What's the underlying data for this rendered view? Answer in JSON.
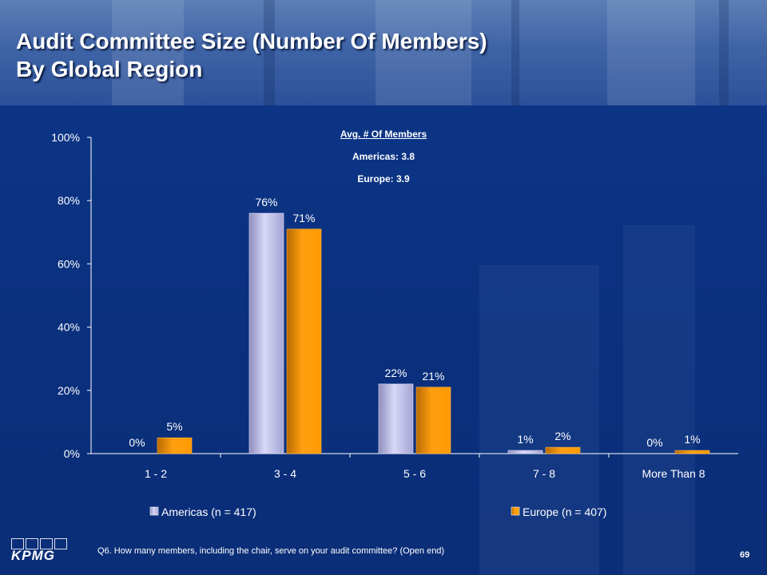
{
  "slide": {
    "title_line1": "Audit Committee Size (Number Of Members)",
    "title_line2": "By Global Region",
    "footnote": "Q6. How many members, including the chair, serve on your audit committee? (Open end)",
    "page_number": "69",
    "logo_text": "KPMG"
  },
  "annotation": {
    "heading": "Avg. # Of Members",
    "lines": [
      "Americas: 3.8",
      "Europe: 3.9"
    ]
  },
  "colors": {
    "background": "#0b2f7e",
    "americas": "#c8c8f0",
    "europe": "#ff9900"
  },
  "chart_data": {
    "type": "bar",
    "title": "Audit Committee Size (Number Of Members) By Global Region",
    "categories": [
      "1 - 2",
      "3 - 4",
      "5 - 6",
      "7 - 8",
      "More Than 8"
    ],
    "series": [
      {
        "name": "Americas (n = 417)",
        "values": [
          0,
          76,
          22,
          1,
          0
        ],
        "labels": [
          "0%",
          "76%",
          "22%",
          "1%",
          "0%"
        ],
        "color": "#c8c8f0"
      },
      {
        "name": "Europe (n = 407)",
        "values": [
          5,
          71,
          21,
          2,
          1
        ],
        "labels": [
          "5%",
          "71%",
          "21%",
          "2%",
          "1%"
        ],
        "color": "#ff9900"
      }
    ],
    "ylim": [
      0,
      100
    ],
    "yticks": [
      "0%",
      "20%",
      "40%",
      "60%",
      "80%",
      "100%"
    ],
    "grid": false,
    "legend": "bottom"
  }
}
